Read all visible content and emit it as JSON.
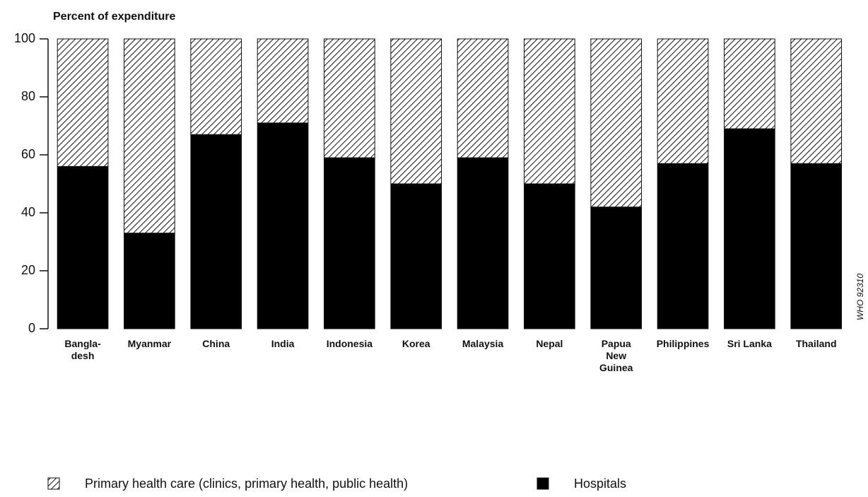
{
  "chart_data": {
    "type": "stacked_bar",
    "y_axis_label": "Percent of expenditure",
    "annotation": "WHO 92310",
    "categories": [
      "Bangla-\ndesh",
      "Myanmar",
      "China",
      "India",
      "Indonesia",
      "Korea",
      "Malaysia",
      "Nepal",
      "Papua\nNew\nGuinea",
      "Philippines",
      "Sri Lanka",
      "Thailand"
    ],
    "series": [
      {
        "name": "Hospitals",
        "color": "#000000",
        "values": [
          56,
          33,
          67,
          71,
          59,
          50,
          59,
          50,
          42,
          57,
          69,
          57
        ]
      },
      {
        "name": "Primary health care (clinics, primary health, public health)",
        "color": "hatch",
        "values": [
          44,
          67,
          33,
          29,
          41,
          50,
          41,
          50,
          58,
          43,
          31,
          43
        ]
      }
    ],
    "ylim": [
      0,
      100
    ],
    "yticks": [
      0,
      20,
      40,
      60,
      80,
      100
    ]
  }
}
